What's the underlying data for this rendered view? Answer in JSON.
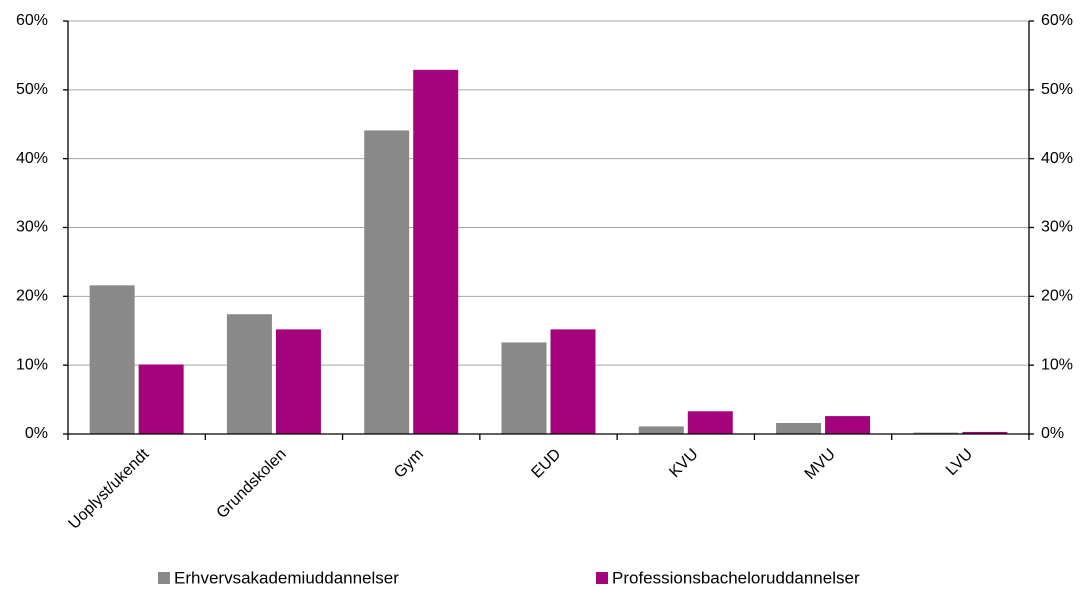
{
  "chart_data": {
    "type": "bar",
    "categories": [
      "Uoplyst/ukendt",
      "Grundskolen",
      "Gym",
      "EUD",
      "KVU",
      "MVU",
      "LVU"
    ],
    "series": [
      {
        "name": "Erhvervsakademiuddannelser",
        "color": "#898989",
        "values": [
          21.6,
          17.4,
          44.1,
          13.3,
          1.1,
          1.6,
          0.2
        ]
      },
      {
        "name": "Professionsbacheloruddannelser",
        "color": "#a5027d",
        "values": [
          10.1,
          15.2,
          52.9,
          15.2,
          3.3,
          2.6,
          0.3
        ]
      }
    ],
    "ylim": [
      0,
      60
    ],
    "yticks": [
      {
        "value": 0,
        "label": "0%"
      },
      {
        "value": 10,
        "label": "10%"
      },
      {
        "value": 20,
        "label": "20%"
      },
      {
        "value": 30,
        "label": "30%"
      },
      {
        "value": 40,
        "label": "40%"
      },
      {
        "value": 50,
        "label": "50%"
      },
      {
        "value": 60,
        "label": "60%"
      }
    ],
    "y2lim": [
      0,
      60
    ],
    "y2ticks": [
      {
        "value": 0,
        "label": "0%"
      },
      {
        "value": 10,
        "label": "10%"
      },
      {
        "value": 20,
        "label": "20%"
      },
      {
        "value": 30,
        "label": "30%"
      },
      {
        "value": 40,
        "label": "40%"
      },
      {
        "value": 50,
        "label": "50%"
      },
      {
        "value": 60,
        "label": "60%"
      }
    ],
    "grid": true,
    "legend": "bottom"
  }
}
